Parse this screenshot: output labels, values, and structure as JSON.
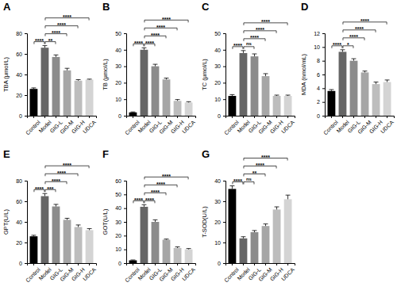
{
  "chart_data": [
    {
      "type": "bar",
      "title": "A",
      "y_label": "TBA (μmol/L)",
      "categories": [
        "Control",
        "Model",
        "GIG-L",
        "GIG-M",
        "GIG-H",
        "UDCA"
      ],
      "values": [
        26,
        66,
        57,
        44,
        34,
        35
      ],
      "errors": [
        1,
        2,
        2,
        2,
        1,
        0.5
      ],
      "colors": [
        "#000000",
        "#666666",
        "#8c8c8c",
        "#a6a6a6",
        "#bdbdbd",
        "#d4d4d4"
      ],
      "ylim": [
        0,
        80
      ],
      "yticks": [
        0,
        20,
        40,
        60,
        80
      ],
      "comparisons": [
        {
          "from": "Control",
          "to": "Model",
          "label": "****"
        },
        {
          "from": "Model",
          "to": "GIG-L",
          "label": "**"
        },
        {
          "from": "Model",
          "to": "GIG-M",
          "label": "****"
        },
        {
          "from": "Model",
          "to": "GIG-H",
          "label": "****"
        },
        {
          "from": "Model",
          "to": "UDCA",
          "label": "****"
        }
      ]
    },
    {
      "type": "bar",
      "title": "B",
      "y_label": "TB (μmol/L)",
      "categories": [
        "Control",
        "Model",
        "GIG-L",
        "GIG-M",
        "GIG-H",
        "UDCA"
      ],
      "values": [
        2,
        40,
        30,
        22,
        9,
        8
      ],
      "errors": [
        0.3,
        1.2,
        1.2,
        0.8,
        0.8,
        0.5
      ],
      "colors": [
        "#000000",
        "#666666",
        "#8c8c8c",
        "#a6a6a6",
        "#bdbdbd",
        "#d4d4d4"
      ],
      "ylim": [
        0,
        50
      ],
      "yticks": [
        0,
        10,
        20,
        30,
        40,
        50
      ],
      "comparisons": [
        {
          "from": "Control",
          "to": "Model",
          "label": "****"
        },
        {
          "from": "Model",
          "to": "GIG-L",
          "label": "****"
        },
        {
          "from": "Model",
          "to": "GIG-M",
          "label": "****"
        },
        {
          "from": "Model",
          "to": "GIG-H",
          "label": "****"
        },
        {
          "from": "Model",
          "to": "UDCA",
          "label": "****"
        }
      ]
    },
    {
      "type": "bar",
      "title": "C",
      "y_label": "TC (μmol/L)",
      "categories": [
        "Control",
        "Model",
        "GIG-L",
        "GIG-M",
        "GIG-H",
        "UDCA"
      ],
      "values": [
        12,
        38,
        36,
        24,
        12,
        12
      ],
      "errors": [
        0.8,
        1.5,
        1.5,
        1.5,
        0.5,
        0.5
      ],
      "colors": [
        "#000000",
        "#666666",
        "#8c8c8c",
        "#a6a6a6",
        "#bdbdbd",
        "#d4d4d4"
      ],
      "ylim": [
        0,
        50
      ],
      "yticks": [
        0,
        10,
        20,
        30,
        40,
        50
      ],
      "comparisons": [
        {
          "from": "Control",
          "to": "Model",
          "label": "****"
        },
        {
          "from": "Model",
          "to": "GIG-L",
          "label": "ns"
        },
        {
          "from": "Model",
          "to": "GIG-M",
          "label": "****"
        },
        {
          "from": "Model",
          "to": "GIG-H",
          "label": "****"
        },
        {
          "from": "Model",
          "to": "UDCA",
          "label": "****"
        }
      ]
    },
    {
      "type": "bar",
      "title": "D",
      "y_label": "MDA (nmol/mL)",
      "categories": [
        "Control",
        "Model",
        "GIG-L",
        "GIG-M",
        "GIG-H",
        "UDCA"
      ],
      "values": [
        3.6,
        9.3,
        8.0,
        6.3,
        4.6,
        4.9
      ],
      "errors": [
        0.2,
        0.3,
        0.3,
        0.2,
        0.3,
        0.3
      ],
      "colors": [
        "#000000",
        "#666666",
        "#8c8c8c",
        "#a6a6a6",
        "#bdbdbd",
        "#d4d4d4"
      ],
      "ylim": [
        0,
        12
      ],
      "yticks": [
        0,
        2,
        4,
        6,
        8,
        10,
        12
      ],
      "comparisons": [
        {
          "from": "Control",
          "to": "Model",
          "label": "****"
        },
        {
          "from": "Model",
          "to": "GIG-L",
          "label": "*"
        },
        {
          "from": "Model",
          "to": "GIG-M",
          "label": "****"
        },
        {
          "from": "Model",
          "to": "GIG-H",
          "label": "****"
        },
        {
          "from": "Model",
          "to": "UDCA",
          "label": "****"
        }
      ]
    },
    {
      "type": "bar",
      "title": "E",
      "y_label": "GPT(U/L)",
      "categories": [
        "Control",
        "Model",
        "GIG-L",
        "GIG-M",
        "GIG-H",
        "UDCA"
      ],
      "values": [
        26,
        65,
        55,
        42,
        35,
        32
      ],
      "errors": [
        1,
        2.5,
        2,
        1.5,
        2,
        1.5
      ],
      "colors": [
        "#000000",
        "#666666",
        "#8c8c8c",
        "#a6a6a6",
        "#bdbdbd",
        "#d4d4d4"
      ],
      "ylim": [
        0,
        80
      ],
      "yticks": [
        0,
        20,
        40,
        60,
        80
      ],
      "comparisons": [
        {
          "from": "Control",
          "to": "Model",
          "label": "****"
        },
        {
          "from": "Model",
          "to": "GIG-L",
          "label": "***"
        },
        {
          "from": "Model",
          "to": "GIG-M",
          "label": "****"
        },
        {
          "from": "Model",
          "to": "GIG-H",
          "label": "****"
        },
        {
          "from": "Model",
          "to": "UDCA",
          "label": "****"
        }
      ]
    },
    {
      "type": "bar",
      "title": "F",
      "y_label": "GOT(U/L)",
      "categories": [
        "Control",
        "Model",
        "GIG-L",
        "GIG-M",
        "GIG-H",
        "UDCA"
      ],
      "values": [
        2,
        41,
        30,
        17,
        11,
        10
      ],
      "errors": [
        0.3,
        1.5,
        1.5,
        0.5,
        0.8,
        0.6
      ],
      "colors": [
        "#000000",
        "#666666",
        "#8c8c8c",
        "#a6a6a6",
        "#bdbdbd",
        "#d4d4d4"
      ],
      "ylim": [
        0,
        60
      ],
      "yticks": [
        0,
        10,
        20,
        30,
        40,
        50,
        60
      ],
      "comparisons": [
        {
          "from": "Control",
          "to": "Model",
          "label": "****"
        },
        {
          "from": "Model",
          "to": "GIG-L",
          "label": "****"
        },
        {
          "from": "Model",
          "to": "GIG-M",
          "label": "****"
        },
        {
          "from": "Model",
          "to": "GIG-H",
          "label": "****"
        },
        {
          "from": "Model",
          "to": "UDCA",
          "label": "****"
        }
      ]
    },
    {
      "type": "bar",
      "title": "G",
      "y_label": "T-SOD(U/L)",
      "categories": [
        "Control",
        "Model",
        "GIG-L",
        "GIG-M",
        "GIG-H",
        "UDCA"
      ],
      "values": [
        36,
        12,
        15,
        18,
        26,
        31
      ],
      "errors": [
        1.5,
        0.8,
        0.8,
        1,
        1.3,
        2
      ],
      "colors": [
        "#000000",
        "#666666",
        "#8c8c8c",
        "#a6a6a6",
        "#bdbdbd",
        "#d4d4d4"
      ],
      "ylim": [
        0,
        40
      ],
      "yticks": [
        0,
        10,
        20,
        30,
        40
      ],
      "comparisons": [
        {
          "from": "Control",
          "to": "Model",
          "label": "****"
        },
        {
          "from": "Model",
          "to": "GIG-L",
          "label": "ns"
        },
        {
          "from": "Model",
          "to": "GIG-M",
          "label": "**"
        },
        {
          "from": "Model",
          "to": "GIG-H",
          "label": "****"
        },
        {
          "from": "Model",
          "to": "UDCA",
          "label": "****"
        }
      ]
    }
  ]
}
